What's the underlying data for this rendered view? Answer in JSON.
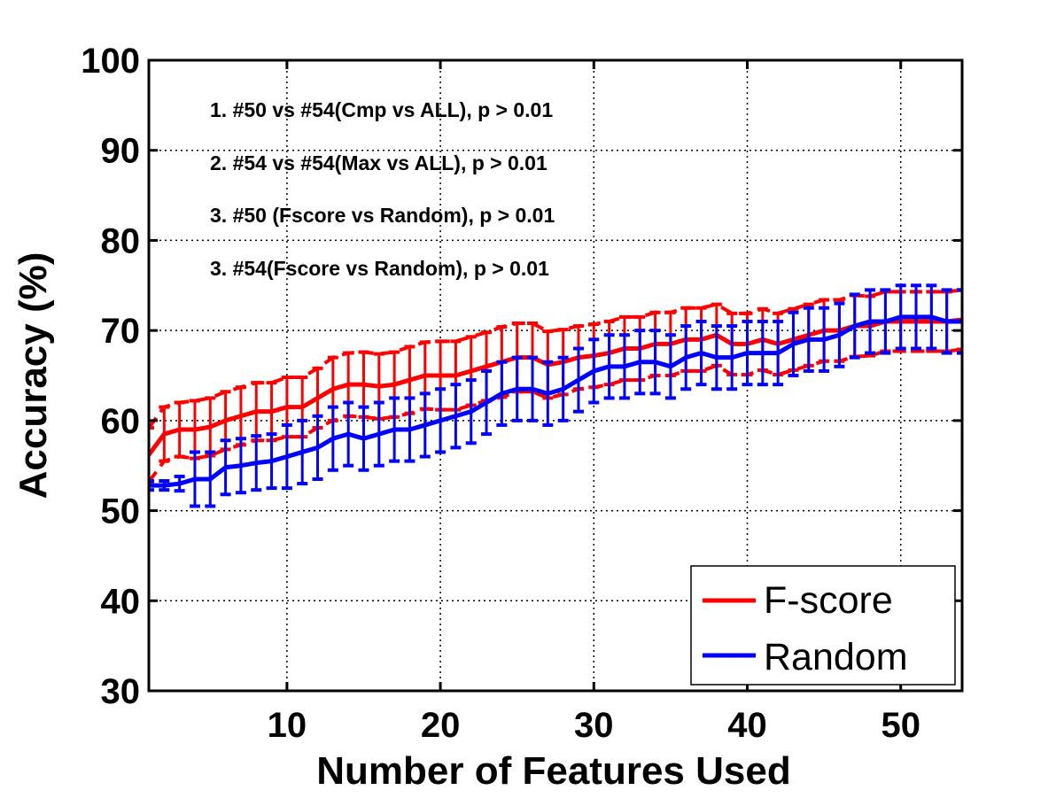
{
  "chart_data": {
    "type": "line",
    "xlabel": "Number of Features Used",
    "ylabel": "Accuracy (%)",
    "xlim": [
      1,
      54
    ],
    "ylim": [
      30,
      100
    ],
    "xticks": [
      10,
      20,
      30,
      40,
      50
    ],
    "yticks": [
      30,
      40,
      50,
      60,
      70,
      80,
      90,
      100
    ],
    "grid": true,
    "legend_position": "bottom-right",
    "annotations": [
      "1. #50 vs #54(Cmp vs ALL), p > 0.01",
      "2. #54 vs #54(Max vs ALL), p > 0.01",
      "3. #50 (Fscore vs Random), p > 0.01",
      "3. #54(Fscore vs Random), p > 0.01"
    ],
    "x": [
      1,
      2,
      3,
      4,
      5,
      6,
      7,
      8,
      9,
      10,
      11,
      12,
      13,
      14,
      15,
      16,
      17,
      18,
      19,
      20,
      21,
      22,
      23,
      24,
      25,
      26,
      27,
      28,
      29,
      30,
      31,
      32,
      33,
      34,
      35,
      36,
      37,
      38,
      39,
      40,
      41,
      42,
      43,
      44,
      45,
      46,
      47,
      48,
      49,
      50,
      51,
      52,
      53,
      54
    ],
    "series": [
      {
        "name": "F-score",
        "color": "#ff0000",
        "values": [
          56.2,
          58.5,
          59.0,
          59.0,
          59.3,
          60.0,
          60.5,
          61.0,
          61.0,
          61.5,
          61.5,
          62.5,
          63.5,
          64.0,
          64.0,
          63.8,
          64.0,
          64.5,
          65.0,
          65.0,
          65.0,
          65.5,
          66.0,
          66.5,
          67.0,
          67.0,
          66.2,
          66.5,
          67.0,
          67.2,
          67.5,
          68.0,
          68.0,
          68.5,
          68.5,
          69.0,
          69.0,
          69.5,
          68.5,
          68.5,
          69.0,
          68.5,
          69.0,
          69.5,
          70.0,
          70.0,
          70.5,
          70.5,
          71.0,
          71.0,
          71.0,
          71.0,
          71.0,
          71.2
        ],
        "errors": [
          3.0,
          3.0,
          3.0,
          3.2,
          3.2,
          3.2,
          3.2,
          3.2,
          3.2,
          3.3,
          3.3,
          3.3,
          3.5,
          3.5,
          3.6,
          3.6,
          3.6,
          3.7,
          3.7,
          3.8,
          3.8,
          3.8,
          3.8,
          3.9,
          3.8,
          3.8,
          3.7,
          3.6,
          3.5,
          3.5,
          3.5,
          3.5,
          3.5,
          3.5,
          3.5,
          3.5,
          3.5,
          3.4,
          3.4,
          3.4,
          3.4,
          3.4,
          3.4,
          3.4,
          3.4,
          3.4,
          3.4,
          3.3,
          3.3,
          3.3,
          3.3,
          3.3,
          3.3,
          3.3
        ]
      },
      {
        "name": "Random",
        "color": "#0000ff",
        "values": [
          52.8,
          52.8,
          53.0,
          53.5,
          53.5,
          54.8,
          55.0,
          55.3,
          55.5,
          56.0,
          56.5,
          57.0,
          58.0,
          58.5,
          58.0,
          58.5,
          59.0,
          59.0,
          59.5,
          60.0,
          60.5,
          61.0,
          62.0,
          63.0,
          63.5,
          63.5,
          63.0,
          63.5,
          64.5,
          65.5,
          66.0,
          66.0,
          66.5,
          66.5,
          66.0,
          67.0,
          67.5,
          67.0,
          67.0,
          67.5,
          67.5,
          67.5,
          68.5,
          69.0,
          69.0,
          69.5,
          70.5,
          71.0,
          71.0,
          71.5,
          71.5,
          71.5,
          71.0,
          71.0
        ],
        "errors": [
          0.5,
          0.5,
          0.8,
          3.0,
          3.0,
          3.0,
          3.0,
          3.0,
          3.0,
          3.5,
          3.5,
          3.5,
          3.5,
          3.5,
          3.5,
          3.5,
          3.5,
          3.5,
          3.5,
          3.5,
          3.5,
          3.5,
          3.5,
          3.5,
          3.5,
          3.5,
          3.5,
          3.5,
          3.5,
          3.5,
          3.5,
          3.5,
          3.5,
          3.5,
          3.5,
          3.5,
          3.5,
          3.5,
          3.5,
          3.5,
          3.5,
          3.5,
          3.5,
          3.5,
          3.5,
          3.5,
          3.5,
          3.5,
          3.5,
          3.5,
          3.5,
          3.5,
          3.5,
          3.5
        ]
      }
    ]
  }
}
